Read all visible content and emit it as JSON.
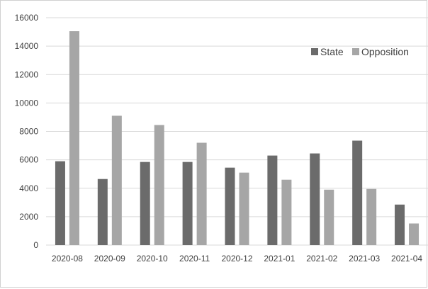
{
  "chart_data": {
    "type": "bar",
    "categories": [
      "2020-08",
      "2020-09",
      "2020-10",
      "2020-11",
      "2020-12",
      "2021-01",
      "2021-02",
      "2021-03",
      "2021-04"
    ],
    "series": [
      {
        "name": "State",
        "color": "#6b6b6b",
        "values": [
          5900,
          4650,
          5850,
          5850,
          5450,
          6300,
          6450,
          7350,
          2850
        ]
      },
      {
        "name": "Opposition",
        "color": "#a6a6a6",
        "values": [
          15050,
          9100,
          8450,
          7200,
          5100,
          4600,
          3900,
          3950,
          1520
        ]
      }
    ],
    "ylim": [
      0,
      16000
    ],
    "yticks": [
      "0",
      "2000",
      "4000",
      "6000",
      "8000",
      "10000",
      "12000",
      "14000",
      "16000"
    ],
    "grid": true,
    "legend_position": "top-right",
    "title": "",
    "xlabel": "",
    "ylabel": ""
  }
}
